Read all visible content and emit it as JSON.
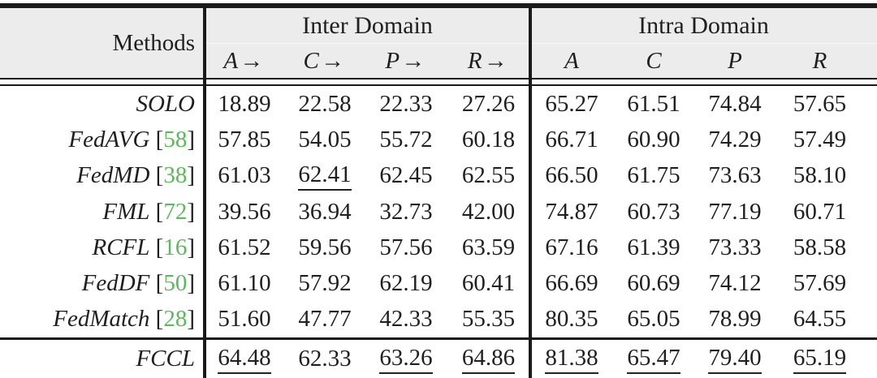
{
  "table": {
    "header": {
      "methods_label": "Methods",
      "groups": [
        {
          "label": "Inter Domain",
          "cols": [
            "A→",
            "C→",
            "P→",
            "R→"
          ]
        },
        {
          "label": "Intra Domain",
          "cols": [
            "A",
            "C",
            "P",
            "R"
          ]
        }
      ]
    },
    "rows": [
      {
        "method": "SOLO",
        "cells": [
          {
            "v": "18.89",
            "u": false
          },
          {
            "v": "22.58",
            "u": false
          },
          {
            "v": "22.33",
            "u": false
          },
          {
            "v": "27.26",
            "u": false
          },
          {
            "v": "65.27",
            "u": false
          },
          {
            "v": "61.51",
            "u": false
          },
          {
            "v": "74.84",
            "u": false
          },
          {
            "v": "57.65",
            "u": false
          }
        ]
      },
      {
        "method": "FedAVG",
        "cite_l": " [",
        "cite": "58",
        "cite_r": "]",
        "cells": [
          {
            "v": "57.85",
            "u": false
          },
          {
            "v": "54.05",
            "u": false
          },
          {
            "v": "55.72",
            "u": false
          },
          {
            "v": "60.18",
            "u": false
          },
          {
            "v": "66.71",
            "u": false
          },
          {
            "v": "60.90",
            "u": false
          },
          {
            "v": "74.29",
            "u": false
          },
          {
            "v": "57.49",
            "u": false
          }
        ]
      },
      {
        "method": "FedMD",
        "cite_l": " [",
        "cite": "38",
        "cite_r": "]",
        "cells": [
          {
            "v": "61.03",
            "u": false
          },
          {
            "v": "62.41",
            "u": true
          },
          {
            "v": "62.45",
            "u": false
          },
          {
            "v": "62.55",
            "u": false
          },
          {
            "v": "66.50",
            "u": false
          },
          {
            "v": "61.75",
            "u": false
          },
          {
            "v": "73.63",
            "u": false
          },
          {
            "v": "58.10",
            "u": false
          }
        ]
      },
      {
        "method": "FML",
        "cite_l": " [",
        "cite": "72",
        "cite_r": "]",
        "cells": [
          {
            "v": "39.56",
            "u": false
          },
          {
            "v": "36.94",
            "u": false
          },
          {
            "v": "32.73",
            "u": false
          },
          {
            "v": "42.00",
            "u": false
          },
          {
            "v": "74.87",
            "u": false
          },
          {
            "v": "60.73",
            "u": false
          },
          {
            "v": "77.19",
            "u": false
          },
          {
            "v": "60.71",
            "u": false
          }
        ]
      },
      {
        "method": "RCFL",
        "cite_l": " [",
        "cite": "16",
        "cite_r": "]",
        "cells": [
          {
            "v": "61.52",
            "u": false
          },
          {
            "v": "59.56",
            "u": false
          },
          {
            "v": "57.56",
            "u": false
          },
          {
            "v": "63.59",
            "u": false
          },
          {
            "v": "67.16",
            "u": false
          },
          {
            "v": "61.39",
            "u": false
          },
          {
            "v": "73.33",
            "u": false
          },
          {
            "v": "58.58",
            "u": false
          }
        ]
      },
      {
        "method": "FedDF",
        "cite_l": " [",
        "cite": "50",
        "cite_r": "]",
        "cells": [
          {
            "v": "61.10",
            "u": false
          },
          {
            "v": "57.92",
            "u": false
          },
          {
            "v": "62.19",
            "u": false
          },
          {
            "v": "60.41",
            "u": false
          },
          {
            "v": "66.69",
            "u": false
          },
          {
            "v": "60.69",
            "u": false
          },
          {
            "v": "74.12",
            "u": false
          },
          {
            "v": "57.69",
            "u": false
          }
        ]
      },
      {
        "method": "FedMatch",
        "cite_l": " [",
        "cite": "28",
        "cite_r": "]",
        "cells": [
          {
            "v": "51.60",
            "u": false
          },
          {
            "v": "47.77",
            "u": false
          },
          {
            "v": "42.33",
            "u": false
          },
          {
            "v": "55.35",
            "u": false
          },
          {
            "v": "80.35",
            "u": false
          },
          {
            "v": "65.05",
            "u": false
          },
          {
            "v": "78.99",
            "u": false
          },
          {
            "v": "64.55",
            "u": false
          }
        ]
      },
      {
        "method": "FCCL",
        "cells": [
          {
            "v": "64.48",
            "u": true
          },
          {
            "v": "62.33",
            "u": false
          },
          {
            "v": "63.26",
            "u": true
          },
          {
            "v": "64.86",
            "u": true
          },
          {
            "v": "81.38",
            "u": true
          },
          {
            "v": "65.47",
            "u": true
          },
          {
            "v": "79.40",
            "u": true
          },
          {
            "v": "65.19",
            "u": true
          }
        ]
      }
    ],
    "colors": {
      "citation_green": "#5cb85c",
      "header_bg": "#ececec",
      "rule": "#1a1a1a"
    }
  }
}
